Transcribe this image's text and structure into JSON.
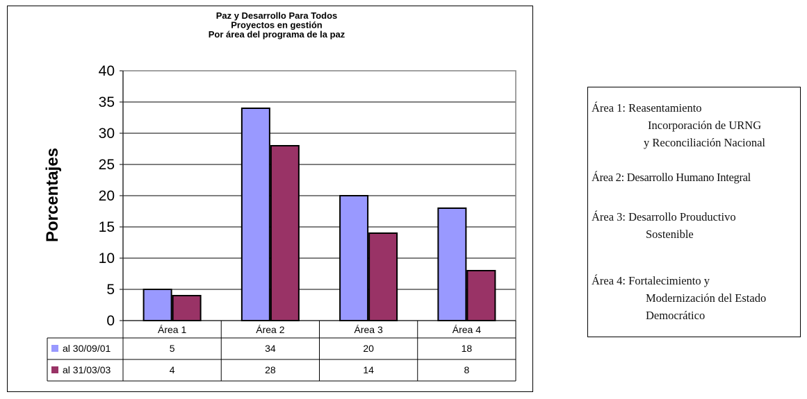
{
  "chart_data": {
    "type": "bar",
    "title": [
      "Paz y Desarrollo Para Todos",
      "Proyectos en gestión",
      "Por área del programa de la paz"
    ],
    "ylabel": "Porcentajes",
    "xlabel": "",
    "categories": [
      "Área 1",
      "Área 2",
      "Área 3",
      "Área 4"
    ],
    "ylim": [
      0,
      40
    ],
    "yticks": [
      0,
      5,
      10,
      15,
      20,
      25,
      30,
      35,
      40
    ],
    "grid": true,
    "series": [
      {
        "name": "al 30/09/01",
        "color": "#9999ff",
        "values": [
          5,
          34,
          20,
          18
        ]
      },
      {
        "name": "al 31/03/03",
        "color": "#993366",
        "values": [
          4,
          28,
          14,
          8
        ]
      }
    ],
    "data_table": true
  },
  "legend_notes": [
    {
      "lines": [
        "Área 1:  Reasentamiento",
        "Incorporación de URNG",
        "y Reconciliación Nacional"
      ]
    },
    {
      "lines": [
        "Área 2:  Desarrollo Humano Integral"
      ]
    },
    {
      "lines": [
        "Área 3:  Desarrollo Prouductivo",
        "Sostenible"
      ]
    },
    {
      "lines": [
        "Área 4:  Fortalecimiento y",
        "Modernización del Estado",
        "Democrático"
      ]
    }
  ]
}
